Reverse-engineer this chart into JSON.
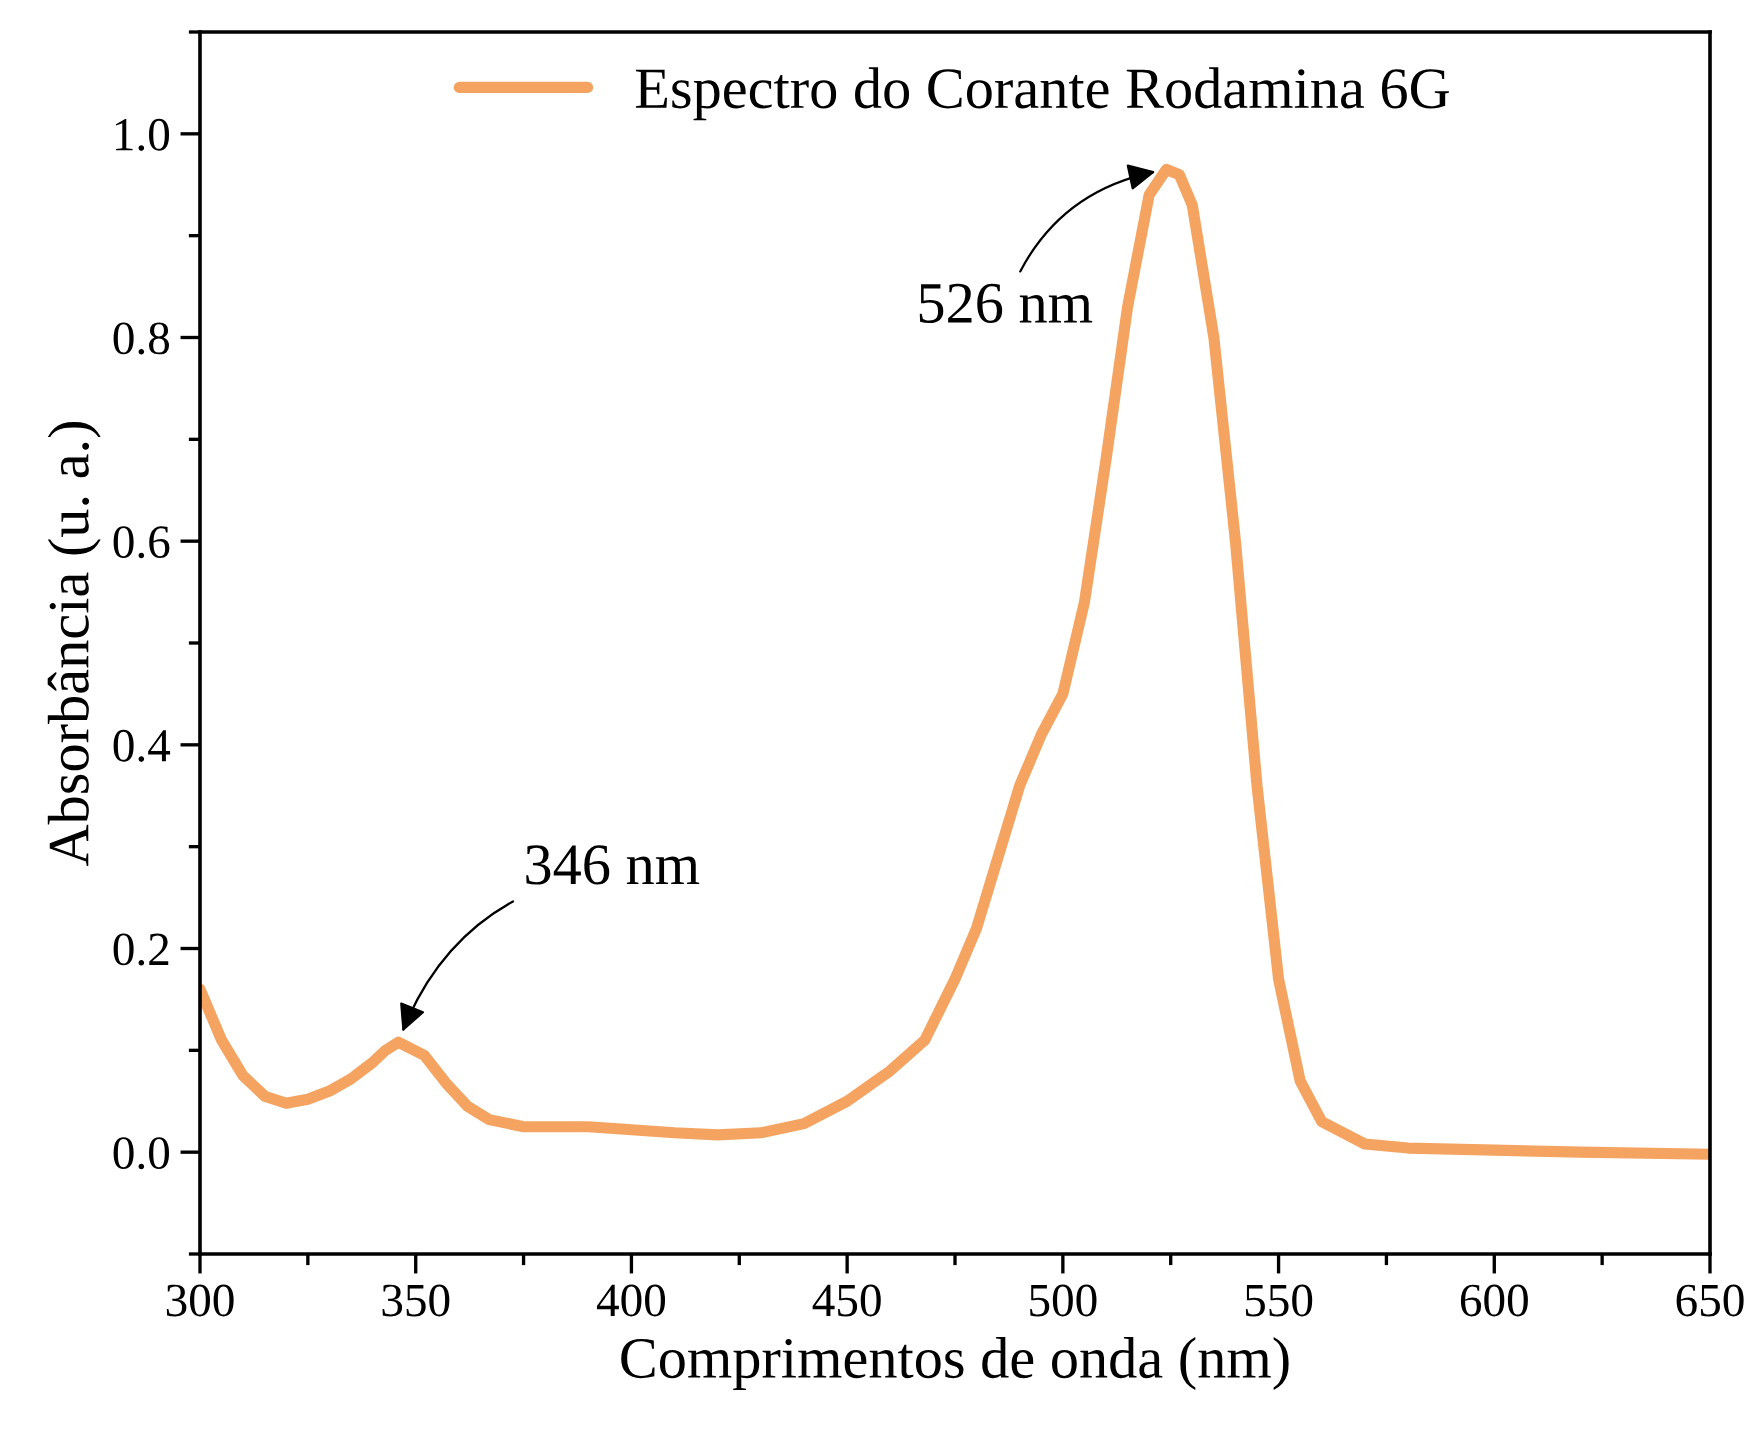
{
  "chart_data": {
    "type": "line",
    "xlabel": "Comprimentos de onda (nm)",
    "ylabel": "Absorbância (u. a.)",
    "xlim": [
      300,
      650
    ],
    "xticks": [
      300,
      350,
      400,
      450,
      500,
      550,
      600,
      650
    ],
    "ylim": [
      -0.1,
      1.1
    ],
    "yticks": [
      {
        "value": 0,
        "label": "0.0"
      },
      {
        "value": 0.2,
        "label": "0.2"
      },
      {
        "value": 0.4,
        "label": "0.4"
      },
      {
        "value": 0.6,
        "label": "0.6"
      },
      {
        "value": 0.8,
        "label": "0.8"
      },
      {
        "value": 1,
        "label": "1.0"
      }
    ],
    "legend": "top",
    "grid": false,
    "marker": "none",
    "line_style": "solid",
    "annotations": [
      {
        "text": "346 nm",
        "x": 346,
        "y": 0.108
      },
      {
        "text": "526 nm",
        "x": 524,
        "y": 0.965
      }
    ],
    "series": [
      {
        "name": "Espectro do Corante Rodamina 6G",
        "color": "#f4a460",
        "x": [
          300,
          305,
          310,
          315,
          320,
          325,
          330,
          335,
          340,
          343,
          346,
          352,
          357,
          362,
          367,
          375,
          390,
          400,
          410,
          420,
          430,
          440,
          450,
          460,
          468,
          475,
          480,
          485,
          490,
          495,
          500,
          505,
          510,
          515,
          520,
          524,
          527,
          530,
          535,
          540,
          545,
          550,
          555,
          560,
          570,
          580,
          600,
          620,
          650
        ],
        "values": [
          0.16,
          0.11,
          0.075,
          0.055,
          0.048,
          0.052,
          0.06,
          0.072,
          0.088,
          0.1,
          0.108,
          0.095,
          0.068,
          0.045,
          0.032,
          0.025,
          0.025,
          0.022,
          0.019,
          0.017,
          0.019,
          0.028,
          0.05,
          0.08,
          0.11,
          0.17,
          0.22,
          0.29,
          0.36,
          0.41,
          0.45,
          0.54,
          0.68,
          0.83,
          0.94,
          0.965,
          0.96,
          0.93,
          0.8,
          0.6,
          0.36,
          0.17,
          0.07,
          0.03,
          0.008,
          0.004,
          0.002,
          0.0,
          -0.002
        ]
      }
    ]
  }
}
